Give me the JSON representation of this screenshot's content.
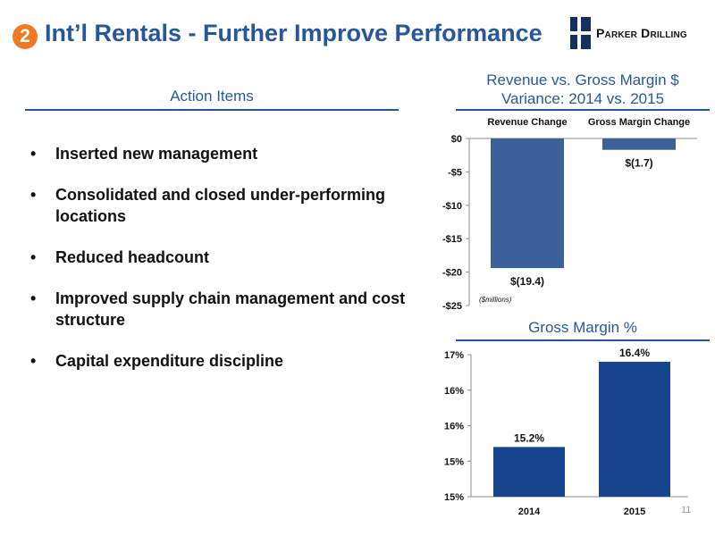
{
  "header": {
    "badge": "2",
    "title": "Int’l Rentals - Further Improve Performance",
    "logo_text": "Parker Drilling"
  },
  "left": {
    "section_title": "Action Items",
    "bullet_glyph": "•",
    "bullets": [
      "Inserted new management",
      "Consolidated and closed under-performing locations",
      "Reduced headcount",
      "Improved supply chain management and cost structure",
      "Capital expenditure discipline"
    ]
  },
  "page_number": "11",
  "colors": {
    "title_blue": "#27579b",
    "badge_orange": "#f07a22",
    "bar_variance": "#3c619a",
    "bar_margin": "#16448f",
    "logo_navy": "#14305e"
  },
  "chart_data": [
    {
      "type": "bar",
      "title": "Revenue vs. Gross Margin $ Variance: 2014 vs. 2015",
      "title_lines": [
        "Revenue vs. Gross Margin $",
        "Variance: 2014 vs. 2015"
      ],
      "categories": [
        "Revenue Change",
        "Gross Margin Change"
      ],
      "values": [
        -19.4,
        -1.7
      ],
      "data_labels": [
        "$(19.4)",
        "$(1.7)"
      ],
      "y_ticks": [
        0,
        -5,
        -10,
        -15,
        -20,
        -25
      ],
      "y_tick_labels": [
        "$0",
        "-$5",
        "-$10",
        "-$15",
        "-$20",
        "-$25"
      ],
      "ylim": [
        -25,
        0
      ],
      "unit_note": "($millions)",
      "category_label_position": "top",
      "grid": false
    },
    {
      "type": "bar",
      "title": "Gross Margin %",
      "categories": [
        "2014",
        "2015"
      ],
      "values": [
        15.2,
        16.4
      ],
      "data_labels": [
        "15.2%",
        "16.4%"
      ],
      "y_ticks": [
        14.5,
        15.0,
        15.5,
        16.0,
        16.5
      ],
      "y_tick_labels": [
        "15%",
        "15%",
        "16%",
        "16%",
        "17%"
      ],
      "ylim": [
        14.5,
        16.5
      ],
      "grid": false
    }
  ]
}
